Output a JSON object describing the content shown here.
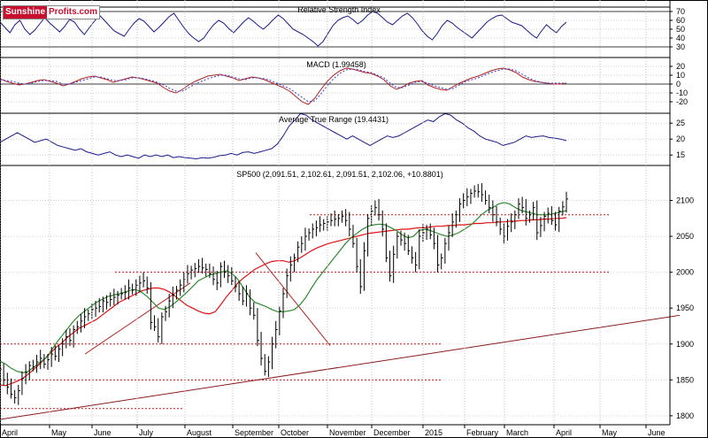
{
  "logo": {
    "part1": "Sunshine",
    "part2": "Profits.com"
  },
  "chart_data": [
    {
      "type": "line",
      "title": "Relative Strength Index",
      "ylim": [
        25,
        75
      ],
      "y_ticks": [
        30,
        40,
        50,
        60,
        70
      ],
      "reference_lines": [
        30,
        70
      ],
      "series": [
        {
          "color": "#1a1a8c",
          "values": [
            58,
            52,
            46,
            55,
            60,
            50,
            44,
            49,
            56,
            63,
            57,
            52,
            47,
            53,
            61,
            58,
            50,
            44,
            52,
            59,
            66,
            60,
            54,
            48,
            45,
            42,
            50,
            57,
            62,
            59,
            53,
            47,
            52,
            58,
            64,
            68,
            60,
            52,
            45,
            40,
            36,
            40,
            48,
            55,
            60,
            57,
            51,
            46,
            52,
            58,
            63,
            59,
            54,
            50,
            55,
            61,
            66,
            62,
            56,
            50,
            47,
            44,
            40,
            36,
            31,
            36,
            45,
            54,
            60,
            63,
            65,
            61,
            56,
            60,
            66,
            70,
            68,
            63,
            58,
            55,
            60,
            65,
            68,
            63,
            56,
            48,
            42,
            38,
            45,
            54,
            60,
            57,
            52,
            48,
            44,
            40,
            46,
            52,
            58,
            62,
            65,
            66,
            62,
            58,
            56,
            54,
            49,
            44,
            40,
            48,
            55,
            50,
            46,
            53,
            58
          ]
        }
      ]
    },
    {
      "type": "line",
      "title": "MACD (1.99458)",
      "ylim": [
        -30,
        25
      ],
      "y_ticks": [
        -20,
        -10,
        0,
        10,
        20
      ],
      "series": [
        {
          "color": "#b22222",
          "values": [
            6,
            3,
            1,
            -1,
            0,
            2,
            4,
            5,
            3,
            1,
            -2,
            0,
            3,
            6,
            8,
            9,
            7,
            5,
            2,
            4,
            6,
            8,
            7,
            5,
            3,
            1,
            -4,
            -8,
            -10,
            -6,
            -1,
            3,
            6,
            9,
            10,
            11,
            9,
            7,
            4,
            6,
            8,
            7,
            5,
            2,
            -1,
            -4,
            -8,
            -14,
            -20,
            -23,
            -16,
            -6,
            3,
            10,
            15,
            18,
            17,
            15,
            13,
            12,
            9,
            5,
            -2,
            -6,
            -3,
            1,
            3,
            4,
            -1,
            -4,
            -6,
            -7,
            -3,
            1,
            4,
            7,
            9,
            12,
            15,
            17,
            18,
            16,
            13,
            8,
            5,
            3,
            2,
            1,
            0,
            0,
            1
          ]
        },
        {
          "color": "#3b3bd6",
          "values": [
            5,
            4,
            3,
            1,
            0,
            1,
            3,
            4,
            4,
            3,
            0,
            0,
            2,
            4,
            6,
            8,
            8,
            6,
            4,
            4,
            5,
            7,
            7,
            6,
            4,
            2,
            -1,
            -5,
            -8,
            -8,
            -4,
            0,
            3,
            6,
            8,
            10,
            10,
            8,
            6,
            5,
            7,
            7,
            6,
            4,
            1,
            -2,
            -5,
            -10,
            -15,
            -20,
            -19,
            -11,
            -2,
            6,
            12,
            16,
            17,
            16,
            14,
            13,
            10,
            7,
            1,
            -4,
            -4,
            -1,
            2,
            3,
            1,
            -2,
            -4,
            -6,
            -5,
            -1,
            3,
            5,
            7,
            10,
            13,
            15,
            17,
            17,
            15,
            11,
            7,
            4,
            2,
            1,
            1,
            1,
            1
          ]
        }
      ]
    },
    {
      "type": "line",
      "title": "Average True Range (19.4431)",
      "ylim": [
        12,
        27
      ],
      "y_ticks": [
        15,
        20,
        25
      ],
      "series": [
        {
          "color": "#1a1a8c",
          "values": [
            19,
            20,
            21,
            22,
            21,
            20,
            19,
            19.5,
            20,
            19,
            18,
            17.5,
            17,
            16.5,
            17,
            16,
            15.5,
            15,
            15.5,
            16,
            15,
            14.5,
            15,
            14.5,
            14,
            15,
            14.5,
            15,
            14.5,
            15,
            14.2,
            14.5,
            14.2,
            14,
            13.8,
            14.2,
            14,
            14.3,
            14.8,
            15,
            15.5,
            15,
            15.8,
            16,
            15.5,
            16,
            16.5,
            17,
            18.5,
            21,
            24,
            26,
            28,
            27.5,
            26,
            25,
            24,
            23,
            22,
            21,
            20,
            21,
            20,
            19,
            18,
            19,
            20,
            21,
            20.5,
            21,
            22,
            23,
            24,
            25,
            26,
            25.5,
            27,
            28,
            27.5,
            26,
            25,
            23.5,
            22.5,
            21,
            20,
            19.5,
            19,
            18,
            18.5,
            19,
            20,
            21,
            20.5,
            20.8,
            21,
            20.5,
            20.3,
            20,
            19.5
          ]
        }
      ]
    },
    {
      "type": "candlestick",
      "title": "SP500 (2,091.51, 2,102.61, 2,091.51, 2,102.06, +10.8801)",
      "ylim": [
        1790,
        2145
      ],
      "y_ticks": [
        1800,
        1850,
        1900,
        1950,
        2000,
        2050,
        2100
      ],
      "x_ticks": [
        "April",
        "May",
        "June",
        "July",
        "August",
        "September",
        "October",
        "November",
        "December",
        "2015",
        "February",
        "March",
        "April",
        "May",
        "June"
      ],
      "closes": [
        1865,
        1850,
        1840,
        1830,
        1825,
        1835,
        1852,
        1860,
        1870,
        1868,
        1875,
        1880,
        1872,
        1878,
        1886,
        1883,
        1893,
        1900,
        1910,
        1905,
        1920,
        1924,
        1932,
        1938,
        1942,
        1948,
        1950,
        1952,
        1960,
        1958,
        1962,
        1965,
        1968,
        1970,
        1972,
        1978,
        1975,
        1982,
        1985,
        1988,
        1978,
        1930,
        1924,
        1910,
        1938,
        1945,
        1960,
        1968,
        1975,
        1982,
        1990,
        1998,
        2003,
        2005,
        2008,
        2006,
        2004,
        1998,
        1990,
        1985,
        2008,
        2000,
        1995,
        1988,
        1980,
        1970,
        1960,
        1970,
        1950,
        1940,
        1905,
        1880,
        1862,
        1875,
        1900,
        1920,
        1946,
        1970,
        1995,
        2010,
        2020,
        2035,
        2040,
        2050,
        2055,
        2060,
        2062,
        2066,
        2068,
        2070,
        2072,
        2074,
        2075,
        2078,
        2072,
        2060,
        2040,
        2008,
        1980,
        2030,
        2075,
        2085,
        2090,
        2080,
        2060,
        2020,
        1995,
        2025,
        2050,
        2045,
        2040,
        2030,
        2020,
        2010,
        2050,
        2055,
        2060,
        2052,
        2040,
        2010,
        2020,
        2040,
        2055,
        2070,
        2080,
        2095,
        2100,
        2105,
        2110,
        2113,
        2112,
        2108,
        2100,
        2090,
        2080,
        2070,
        2060,
        2050,
        2064,
        2070,
        2080,
        2095,
        2090,
        2075,
        2080,
        2090,
        2055,
        2065,
        2078,
        2082,
        2072,
        2066,
        2085,
        2091,
        2102
      ],
      "moving_average_short": {
        "color": "#2e8b2e",
        "values": [
          1876,
          1872,
          1866,
          1862,
          1860,
          1862,
          1868,
          1874,
          1880,
          1890,
          1902,
          1912,
          1922,
          1932,
          1940,
          1946,
          1952,
          1958,
          1962,
          1966,
          1968,
          1970,
          1972,
          1975,
          1976,
          1972,
          1966,
          1958,
          1950,
          1948,
          1952,
          1958,
          1965,
          1972,
          1980,
          1988,
          1992,
          1996,
          1998,
          2000,
          2002,
          1998,
          1990,
          1978,
          1966,
          1958,
          1955,
          1952,
          1948,
          1945,
          1945,
          1946,
          1948,
          1955,
          1965,
          1978,
          1990,
          2000,
          2010,
          2020,
          2030,
          2040,
          2048,
          2054,
          2060,
          2064,
          2066,
          2067,
          2066,
          2062,
          2058,
          2052,
          2048,
          2050,
          2058,
          2060,
          2058,
          2055,
          2052,
          2050,
          2052,
          2055,
          2060,
          2065,
          2072,
          2080,
          2086,
          2090,
          2095,
          2097,
          2095,
          2090,
          2086,
          2084,
          2082,
          2080,
          2080,
          2080,
          2082,
          2084,
          2086
        ]
      },
      "moving_average_long": {
        "color": "#e01010",
        "values": [
          1843,
          1842,
          1845,
          1848,
          1852,
          1858,
          1865,
          1872,
          1880,
          1888,
          1896,
          1902,
          1910,
          1916,
          1922,
          1926,
          1930,
          1934,
          1940,
          1946,
          1952,
          1958,
          1962,
          1966,
          1970,
          1974,
          1976,
          1978,
          1978,
          1976,
          1972,
          1966,
          1960,
          1954,
          1950,
          1946,
          1943,
          1942,
          1945,
          1955,
          1966,
          1975,
          1985,
          1992,
          1998,
          2004,
          2008,
          2012,
          2015,
          2016,
          2016,
          2014,
          2016,
          2020,
          2025,
          2030,
          2034,
          2037,
          2040,
          2042,
          2044,
          2046,
          2048,
          2050,
          2052,
          2054,
          2055,
          2056,
          2057,
          2058,
          2059,
          2060,
          2060,
          2061,
          2062,
          2062,
          2063,
          2064,
          2064,
          2065,
          2065,
          2066,
          2066,
          2067,
          2068,
          2068,
          2069,
          2069,
          2070,
          2070,
          2071,
          2071,
          2072,
          2072,
          2073,
          2073,
          2074,
          2074,
          2075,
          2075,
          2076
        ]
      },
      "support_resistance_levels": [
        2080,
        2000,
        1900,
        1850,
        1810
      ],
      "trendlines": [
        {
          "color": "#8b1a1a",
          "points": [
            [
              "April",
              1795
            ],
            [
              "June",
              1940
            ]
          ]
        },
        {
          "color": "#b22222",
          "points": [
            [
              "May",
              1886
            ],
            [
              "July",
              1985
            ]
          ]
        },
        {
          "color": "#b22222",
          "points": [
            [
              "September",
              2027
            ],
            [
              "October",
              1898
            ]
          ]
        }
      ]
    }
  ]
}
